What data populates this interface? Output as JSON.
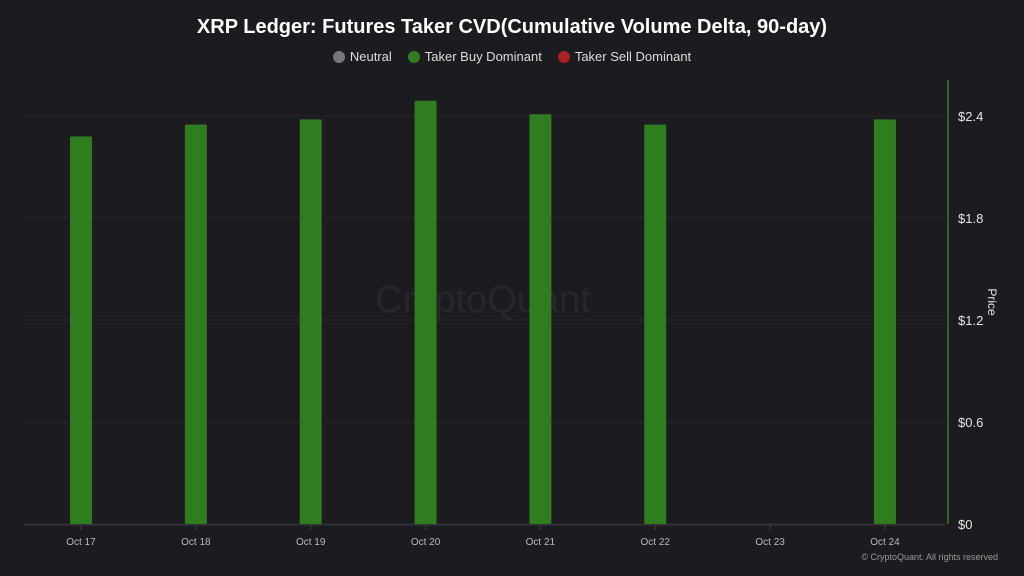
{
  "chart_data": {
    "type": "bar",
    "title": "XRP Ledger: Futures Taker CVD(Cumulative Volume Delta, 90-day)",
    "legend": [
      {
        "name": "Neutral",
        "color": "#76767f"
      },
      {
        "name": "Taker Buy Dominant",
        "color": "#2f7d1f"
      },
      {
        "name": "Taker Sell Dominant",
        "color": "#a82222"
      }
    ],
    "legend_placement": "top",
    "categories": [
      "Oct 17",
      "Oct 18",
      "Oct 19",
      "Oct 20",
      "Oct 21",
      "Oct 22",
      "Oct 23",
      "Oct 24"
    ],
    "values": [
      2.28,
      2.35,
      2.38,
      2.49,
      2.41,
      2.35,
      null,
      2.38
    ],
    "bar_status": [
      "Taker Buy Dominant",
      "Taker Buy Dominant",
      "Taker Buy Dominant",
      "Taker Buy Dominant",
      "Taker Buy Dominant",
      "Taker Buy Dominant",
      null,
      "Taker Buy Dominant"
    ],
    "ylabel": "Price",
    "y_axis_side": "right",
    "yticks": [
      "$0",
      "$0.6",
      "$1.2",
      "$1.8",
      "$2.4"
    ],
    "ytick_values": [
      0,
      0.6,
      1.2,
      1.8,
      2.4
    ],
    "ylim": [
      0,
      2.62
    ],
    "grid": true
  },
  "watermark": "CryptoQuant",
  "copyright": "© CryptoQuant. All rights reserved"
}
